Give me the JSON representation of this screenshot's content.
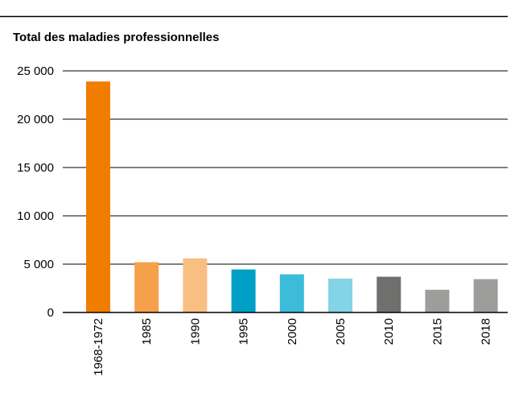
{
  "chart_data": {
    "type": "bar",
    "title": "Total des maladies professionnelles",
    "xlabel": "",
    "ylabel": "",
    "categories": [
      "1968-1972",
      "1985",
      "1990",
      "1995",
      "2000",
      "2005",
      "2010",
      "2015",
      "2018"
    ],
    "values": [
      23900,
      5200,
      5600,
      4450,
      3950,
      3500,
      3700,
      2350,
      3450
    ],
    "colors": [
      "#f07d00",
      "#f5a04a",
      "#f8be82",
      "#00a0c6",
      "#3cbcd8",
      "#82d4e6",
      "#6f6f6e",
      "#9d9d9c",
      "#9d9d9c"
    ],
    "ylim": [
      0,
      25000
    ],
    "yticks": [
      0,
      5000,
      10000,
      15000,
      20000,
      25000
    ],
    "ytick_labels": [
      "0",
      "5 000",
      "10 000",
      "15 000",
      "20 000",
      "25 000"
    ],
    "grid": true,
    "legend": "none"
  }
}
